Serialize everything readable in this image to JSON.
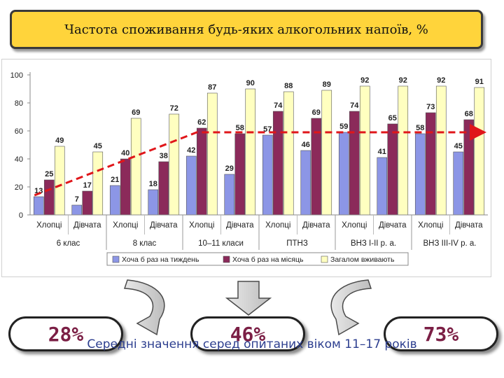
{
  "title": "Частота споживання будь-яких алкогольних напоїв, %",
  "chart_data": {
    "type": "bar",
    "groups": [
      "6 клас",
      "8 клас",
      "10–11 класи",
      "ПТНЗ",
      "ВНЗ І-ІІ р. а.",
      "ВНЗ ІІІ-ІV р. а."
    ],
    "categories": [
      "Хлопці",
      "Дівчата",
      "Хлопці",
      "Дівчата",
      "Хлопці",
      "Дівчата",
      "Хлопці",
      "Дівчата",
      "Хлопці",
      "Дівчата",
      "Хлопці",
      "Дівчата"
    ],
    "series": [
      {
        "name": "Хоча б раз на тиждень",
        "color": "#8c96e6",
        "values": [
          13,
          7,
          21,
          18,
          42,
          29,
          57,
          46,
          59,
          41,
          58,
          45
        ]
      },
      {
        "name": "Хоча б раз на місяць",
        "color": "#8b2a5a",
        "values": [
          25,
          17,
          40,
          38,
          62,
          58,
          74,
          69,
          74,
          65,
          73,
          68
        ]
      },
      {
        "name": "Загалом вживають",
        "color": "#ffffc0",
        "values": [
          49,
          45,
          69,
          72,
          87,
          90,
          88,
          89,
          92,
          92,
          92,
          91
        ]
      }
    ],
    "ylim": [
      0,
      100
    ],
    "yticks": [
      "0",
      "20",
      "40",
      "60",
      "80",
      "100"
    ],
    "legend_position": "bottom",
    "trend_line": true
  },
  "averages": [
    "28%",
    "46%",
    "73%"
  ],
  "footer": "Середні значення серед опитаних віком 11–17 років"
}
